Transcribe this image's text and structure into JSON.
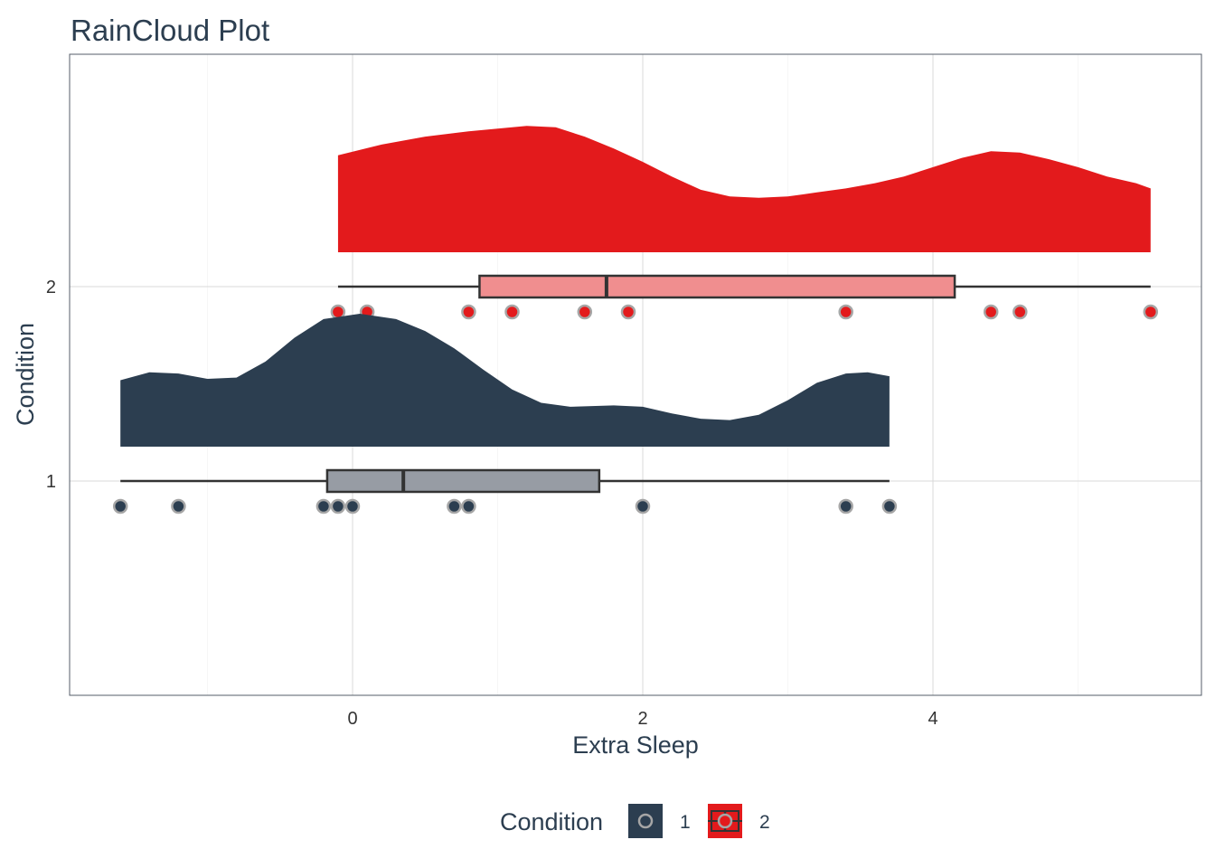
{
  "chart_data": {
    "type": "raincloud",
    "title": "RainCloud Plot",
    "xlabel": "Extra Sleep",
    "ylabel": "Condition",
    "xlim": [
      -1.8,
      5.8
    ],
    "x_ticks": [
      0,
      2,
      4
    ],
    "y_categories": [
      "1",
      "2"
    ],
    "grid": true,
    "legend": {
      "title": "Condition",
      "position": "bottom",
      "entries": [
        "1",
        "2"
      ]
    },
    "series": [
      {
        "name": "1",
        "color": "#2c3e50",
        "box_fill": "#979ca4",
        "points": [
          0.7,
          -1.6,
          -0.2,
          -1.2,
          -0.1,
          3.4,
          3.7,
          0.8,
          0.0,
          2.0
        ],
        "box": {
          "min": -1.6,
          "q1": -0.175,
          "median": 0.35,
          "q3": 1.7,
          "max": 3.7
        },
        "density": [
          [
            -1.6,
            0.5
          ],
          [
            -1.4,
            0.56
          ],
          [
            -1.2,
            0.55
          ],
          [
            -1.0,
            0.51
          ],
          [
            -0.8,
            0.52
          ],
          [
            -0.6,
            0.64
          ],
          [
            -0.4,
            0.82
          ],
          [
            -0.2,
            0.96
          ],
          [
            0.05,
            1.0
          ],
          [
            0.3,
            0.96
          ],
          [
            0.5,
            0.87
          ],
          [
            0.7,
            0.74
          ],
          [
            0.9,
            0.58
          ],
          [
            1.1,
            0.43
          ],
          [
            1.3,
            0.33
          ],
          [
            1.5,
            0.3
          ],
          [
            1.8,
            0.31
          ],
          [
            2.0,
            0.3
          ],
          [
            2.2,
            0.25
          ],
          [
            2.4,
            0.21
          ],
          [
            2.6,
            0.2
          ],
          [
            2.8,
            0.24
          ],
          [
            3.0,
            0.35
          ],
          [
            3.2,
            0.48
          ],
          [
            3.4,
            0.55
          ],
          [
            3.55,
            0.56
          ],
          [
            3.7,
            0.53
          ]
        ]
      },
      {
        "name": "2",
        "color": "#e31a1c",
        "box_fill": "#f08e8f",
        "points": [
          1.9,
          0.8,
          1.1,
          0.1,
          -0.1,
          4.4,
          5.5,
          1.6,
          4.6,
          3.4
        ],
        "box": {
          "min": -0.1,
          "q1": 0.875,
          "median": 1.75,
          "q3": 4.15,
          "max": 5.5
        },
        "density": [
          [
            -0.1,
            0.73
          ],
          [
            0.2,
            0.81
          ],
          [
            0.5,
            0.87
          ],
          [
            0.8,
            0.91
          ],
          [
            1.0,
            0.93
          ],
          [
            1.2,
            0.95
          ],
          [
            1.4,
            0.94
          ],
          [
            1.6,
            0.87
          ],
          [
            1.8,
            0.78
          ],
          [
            2.0,
            0.68
          ],
          [
            2.2,
            0.57
          ],
          [
            2.4,
            0.47
          ],
          [
            2.6,
            0.42
          ],
          [
            2.8,
            0.41
          ],
          [
            3.0,
            0.42
          ],
          [
            3.2,
            0.45
          ],
          [
            3.4,
            0.48
          ],
          [
            3.6,
            0.52
          ],
          [
            3.8,
            0.57
          ],
          [
            4.0,
            0.64
          ],
          [
            4.2,
            0.71
          ],
          [
            4.4,
            0.76
          ],
          [
            4.6,
            0.75
          ],
          [
            4.8,
            0.7
          ],
          [
            5.0,
            0.64
          ],
          [
            5.2,
            0.57
          ],
          [
            5.4,
            0.52
          ],
          [
            5.5,
            0.48
          ]
        ]
      }
    ]
  }
}
